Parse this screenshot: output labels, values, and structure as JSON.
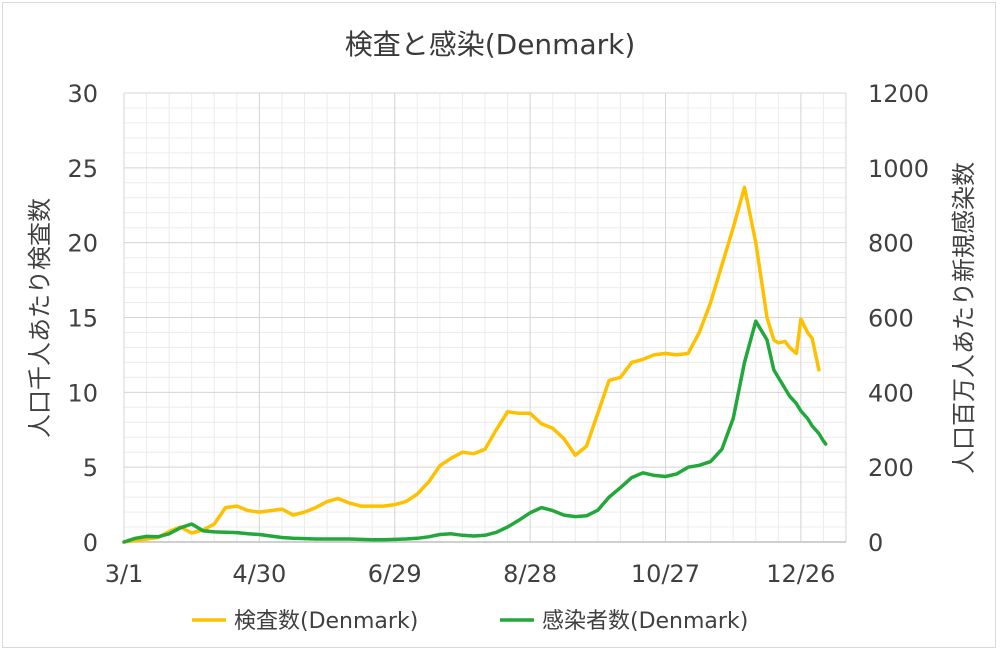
{
  "chart_data": {
    "type": "line",
    "title": "検査と感染(Denmark)",
    "xlabel": "",
    "y_left_label": "人口千人あたり検査数",
    "y_right_label": "人口百万人あたり新規感染数",
    "x_tick_labels": [
      "3/1",
      "4/30",
      "6/29",
      "8/28",
      "10/27",
      "12/26"
    ],
    "x_tick_days": [
      0,
      60,
      120,
      180,
      240,
      300
    ],
    "x_range_days": [
      0,
      320
    ],
    "y_left_range": [
      0,
      30
    ],
    "y_left_ticks": [
      "0",
      "5",
      "10",
      "15",
      "20",
      "25",
      "30"
    ],
    "y_right_range": [
      0,
      1200
    ],
    "y_right_ticks": [
      "0",
      "200",
      "400",
      "600",
      "800",
      "1000",
      "1200"
    ],
    "grid": true,
    "legend_position": "bottom",
    "series": [
      {
        "name": "検査数(Denmark)",
        "axis": "left",
        "color": "#FFC000",
        "x": [
          0,
          5,
          10,
          15,
          20,
          25,
          30,
          35,
          40,
          45,
          50,
          55,
          60,
          65,
          70,
          75,
          80,
          85,
          90,
          95,
          100,
          105,
          110,
          115,
          120,
          125,
          130,
          135,
          140,
          145,
          150,
          155,
          160,
          165,
          170,
          175,
          180,
          185,
          190,
          195,
          200,
          205,
          210,
          215,
          220,
          225,
          230,
          235,
          240,
          245,
          250,
          255,
          260,
          265,
          270,
          275,
          280,
          285,
          288,
          290,
          293,
          295,
          298,
          300,
          303,
          305,
          308,
          310,
          311
        ],
        "y": [
          0.0,
          0.1,
          0.2,
          0.3,
          0.7,
          1.0,
          0.6,
          0.8,
          1.2,
          2.3,
          2.4,
          2.1,
          2.0,
          2.1,
          2.2,
          1.8,
          2.0,
          2.3,
          2.7,
          2.9,
          2.6,
          2.4,
          2.4,
          2.4,
          2.5,
          2.7,
          3.2,
          4.0,
          5.1,
          5.6,
          6.0,
          5.9,
          6.2,
          7.5,
          8.7,
          8.6,
          8.6,
          7.9,
          7.6,
          6.9,
          5.8,
          6.4,
          8.6,
          10.8,
          11.0,
          12.0,
          12.2,
          12.5,
          12.6,
          12.5,
          12.6,
          14.0,
          16.0,
          18.5,
          21.0,
          23.7,
          20.0,
          15.0,
          13.5,
          13.3,
          13.4,
          13.0,
          12.6,
          14.9,
          14.0,
          13.6,
          11.5,
          null,
          null
        ]
      },
      {
        "name": "感染者数(Denmark)",
        "axis": "right",
        "color": "#22A83A",
        "x": [
          0,
          5,
          10,
          15,
          20,
          25,
          30,
          35,
          40,
          45,
          50,
          55,
          60,
          65,
          70,
          75,
          80,
          85,
          90,
          95,
          100,
          105,
          110,
          115,
          120,
          125,
          130,
          135,
          140,
          145,
          150,
          155,
          160,
          165,
          170,
          175,
          180,
          185,
          190,
          195,
          200,
          205,
          210,
          215,
          220,
          225,
          230,
          235,
          240,
          245,
          250,
          255,
          260,
          265,
          270,
          275,
          280,
          285,
          288,
          290,
          293,
          295,
          298,
          300,
          303,
          305,
          308,
          310,
          311
        ],
        "y": [
          0,
          10,
          15,
          14,
          22,
          38,
          48,
          30,
          27,
          26,
          25,
          22,
          20,
          16,
          12,
          10,
          9,
          8,
          8,
          8,
          8,
          7,
          6,
          6,
          7,
          8,
          10,
          14,
          20,
          22,
          18,
          16,
          18,
          26,
          40,
          58,
          78,
          92,
          84,
          72,
          68,
          70,
          85,
          120,
          145,
          172,
          185,
          178,
          175,
          182,
          200,
          205,
          215,
          248,
          330,
          480,
          590,
          540,
          460,
          440,
          410,
          390,
          370,
          350,
          330,
          310,
          290,
          270,
          262
        ]
      }
    ]
  }
}
